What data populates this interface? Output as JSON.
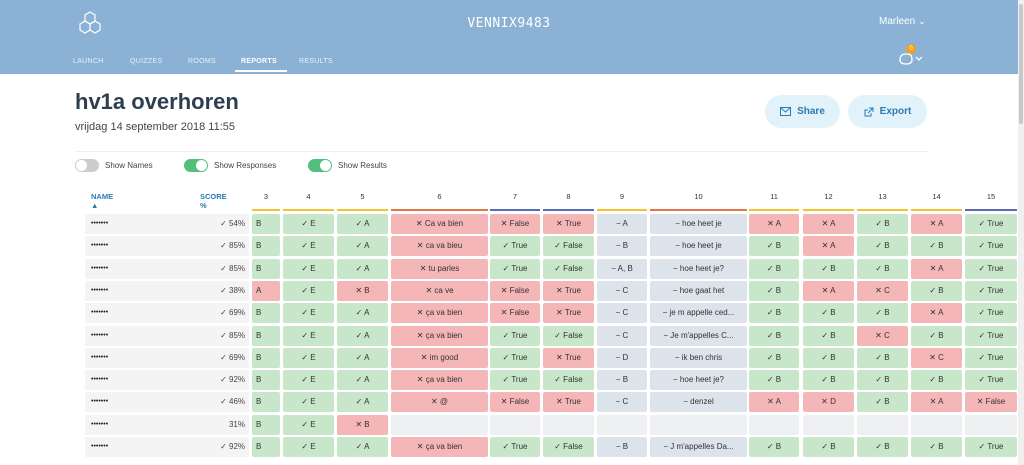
{
  "header": {
    "brand": "VENNIX9483",
    "user": "Marleen",
    "badge": "0"
  },
  "nav": [
    {
      "label": "LAUNCH"
    },
    {
      "label": "QUIZZES"
    },
    {
      "label": "ROOMS"
    },
    {
      "label": "REPORTS"
    },
    {
      "label": "RESULTS"
    }
  ],
  "report": {
    "title": "hv1a overhoren",
    "date": "vrijdag 14 september 2018 11:55",
    "share": "Share",
    "export": "Export"
  },
  "toggles": [
    {
      "label": "Show Names",
      "on": false
    },
    {
      "label": "Show Responses",
      "on": true
    },
    {
      "label": "Show Results",
      "on": true
    }
  ],
  "table": {
    "name_header": "NAME ▲",
    "score_header": "SCORE %",
    "questions": [
      "3",
      "4",
      "5",
      "6",
      "7",
      "8",
      "9",
      "10",
      "11",
      "12",
      "13",
      "14",
      "15"
    ],
    "q_colors": [
      "#f0c330",
      "#f0c330",
      "#f0c330",
      "#e8754a",
      "#5a6bb5",
      "#5a6bb5",
      "#f0c330",
      "#e8754a",
      "#f0c330",
      "#f0c330",
      "#f0c330",
      "#f0c330",
      "#5a6bb5"
    ],
    "rows": [
      {
        "name": "•••••••",
        "score": "✓ 54%",
        "cells": [
          [
            "B",
            "g"
          ],
          [
            "✓ E",
            "g"
          ],
          [
            "✓ A",
            "g"
          ],
          [
            "✕ Ca va bien",
            "r"
          ],
          [
            "✕ False",
            "r"
          ],
          [
            "✕ True",
            "r"
          ],
          [
            "− A",
            "n"
          ],
          [
            "− hoe heet je",
            "n"
          ],
          [
            "✕ A",
            "r"
          ],
          [
            "✕ A",
            "r"
          ],
          [
            "✓ B",
            "g"
          ],
          [
            "✕ A",
            "r"
          ],
          [
            "✓ True",
            "g"
          ]
        ]
      },
      {
        "name": "•••••••",
        "score": "✓ 85%",
        "cells": [
          [
            "B",
            "g"
          ],
          [
            "✓ E",
            "g"
          ],
          [
            "✓ A",
            "g"
          ],
          [
            "✕ ca va bieu",
            "r"
          ],
          [
            "✓ True",
            "g"
          ],
          [
            "✓ False",
            "g"
          ],
          [
            "− B",
            "n"
          ],
          [
            "− hoe heet je",
            "n"
          ],
          [
            "✓ B",
            "g"
          ],
          [
            "✕ A",
            "r"
          ],
          [
            "✓ B",
            "g"
          ],
          [
            "✓ B",
            "g"
          ],
          [
            "✓ True",
            "g"
          ]
        ]
      },
      {
        "name": "•••••••",
        "score": "✓ 85%",
        "cells": [
          [
            "B",
            "g"
          ],
          [
            "✓ E",
            "g"
          ],
          [
            "✓ A",
            "g"
          ],
          [
            "✕ tu parles",
            "r"
          ],
          [
            "✓ True",
            "g"
          ],
          [
            "✓ False",
            "g"
          ],
          [
            "− A, B",
            "n"
          ],
          [
            "− hoe heet je?",
            "n"
          ],
          [
            "✓ B",
            "g"
          ],
          [
            "✓ B",
            "g"
          ],
          [
            "✓ B",
            "g"
          ],
          [
            "✕ A",
            "r"
          ],
          [
            "✓ True",
            "g"
          ]
        ]
      },
      {
        "name": "•••••••",
        "score": "✓ 38%",
        "cells": [
          [
            "A",
            "r"
          ],
          [
            "✓ E",
            "g"
          ],
          [
            "✕ B",
            "r"
          ],
          [
            "✕ ca ve",
            "r"
          ],
          [
            "✕ False",
            "r"
          ],
          [
            "✕ True",
            "r"
          ],
          [
            "− C",
            "n"
          ],
          [
            "− hoe gaat het",
            "n"
          ],
          [
            "✓ B",
            "g"
          ],
          [
            "✕ A",
            "r"
          ],
          [
            "✕ C",
            "r"
          ],
          [
            "✓ B",
            "g"
          ],
          [
            "✓ True",
            "g"
          ]
        ]
      },
      {
        "name": "•••••••",
        "score": "✓ 69%",
        "cells": [
          [
            "B",
            "g"
          ],
          [
            "✓ E",
            "g"
          ],
          [
            "✓ A",
            "g"
          ],
          [
            "✕ ça va bien",
            "r"
          ],
          [
            "✕ False",
            "r"
          ],
          [
            "✕ True",
            "r"
          ],
          [
            "− C",
            "n"
          ],
          [
            "− je m appelle ced...",
            "n"
          ],
          [
            "✓ B",
            "g"
          ],
          [
            "✓ B",
            "g"
          ],
          [
            "✓ B",
            "g"
          ],
          [
            "✕ A",
            "r"
          ],
          [
            "✓ True",
            "g"
          ]
        ]
      },
      {
        "name": "•••••••",
        "score": "✓ 85%",
        "cells": [
          [
            "B",
            "g"
          ],
          [
            "✓ E",
            "g"
          ],
          [
            "✓ A",
            "g"
          ],
          [
            "✕ ça va bien",
            "r"
          ],
          [
            "✓ True",
            "g"
          ],
          [
            "✓ False",
            "g"
          ],
          [
            "− C",
            "n"
          ],
          [
            "− Je m'appelles C...",
            "n"
          ],
          [
            "✓ B",
            "g"
          ],
          [
            "✓ B",
            "g"
          ],
          [
            "✕ C",
            "r"
          ],
          [
            "✓ B",
            "g"
          ],
          [
            "✓ True",
            "g"
          ]
        ]
      },
      {
        "name": "•••••••",
        "score": "✓ 69%",
        "cells": [
          [
            "B",
            "g"
          ],
          [
            "✓ E",
            "g"
          ],
          [
            "✓ A",
            "g"
          ],
          [
            "✕ im good",
            "r"
          ],
          [
            "✓ True",
            "g"
          ],
          [
            "✕ True",
            "r"
          ],
          [
            "− D",
            "n"
          ],
          [
            "− ik ben chris",
            "n"
          ],
          [
            "✓ B",
            "g"
          ],
          [
            "✓ B",
            "g"
          ],
          [
            "✓ B",
            "g"
          ],
          [
            "✕ C",
            "r"
          ],
          [
            "✓ True",
            "g"
          ]
        ]
      },
      {
        "name": "•••••••",
        "score": "✓ 92%",
        "cells": [
          [
            "B",
            "g"
          ],
          [
            "✓ E",
            "g"
          ],
          [
            "✓ A",
            "g"
          ],
          [
            "✕ ça va bien",
            "r"
          ],
          [
            "✓ True",
            "g"
          ],
          [
            "✓ False",
            "g"
          ],
          [
            "− B",
            "n"
          ],
          [
            "− hoe heet je?",
            "n"
          ],
          [
            "✓ B",
            "g"
          ],
          [
            "✓ B",
            "g"
          ],
          [
            "✓ B",
            "g"
          ],
          [
            "✓ B",
            "g"
          ],
          [
            "✓ True",
            "g"
          ]
        ]
      },
      {
        "name": "•••••••",
        "score": "✓ 46%",
        "cells": [
          [
            "B",
            "g"
          ],
          [
            "✓ E",
            "g"
          ],
          [
            "✓ A",
            "g"
          ],
          [
            "✕ @",
            "r"
          ],
          [
            "✕ False",
            "r"
          ],
          [
            "✕ True",
            "r"
          ],
          [
            "− C",
            "n"
          ],
          [
            "− denzel",
            "n"
          ],
          [
            "✕ A",
            "r"
          ],
          [
            "✕ D",
            "r"
          ],
          [
            "✓ B",
            "g"
          ],
          [
            "✕ A",
            "r"
          ],
          [
            "✕ False",
            "r"
          ]
        ]
      },
      {
        "name": "•••••••",
        "score": "31%",
        "cells": [
          [
            "B",
            "g"
          ],
          [
            "✓ E",
            "g"
          ],
          [
            "✕ B",
            "r"
          ],
          [
            "",
            "w"
          ],
          [
            "",
            "w"
          ],
          [
            "",
            "w"
          ],
          [
            "",
            "w"
          ],
          [
            "",
            "w"
          ],
          [
            "",
            "w"
          ],
          [
            "",
            "w"
          ],
          [
            "",
            "w"
          ],
          [
            "",
            "w"
          ],
          [
            "",
            "w"
          ]
        ]
      },
      {
        "name": "•••••••",
        "score": "✓ 92%",
        "cells": [
          [
            "B",
            "g"
          ],
          [
            "✓ E",
            "g"
          ],
          [
            "✓ A",
            "g"
          ],
          [
            "✕ ça va bien",
            "r"
          ],
          [
            "✓ True",
            "g"
          ],
          [
            "✓ False",
            "g"
          ],
          [
            "− B",
            "n"
          ],
          [
            "− J m'appelles Da...",
            "n"
          ],
          [
            "✓ B",
            "g"
          ],
          [
            "✓ B",
            "g"
          ],
          [
            "✓ B",
            "g"
          ],
          [
            "✓ B",
            "g"
          ],
          [
            "✓ True",
            "g"
          ]
        ]
      }
    ]
  }
}
